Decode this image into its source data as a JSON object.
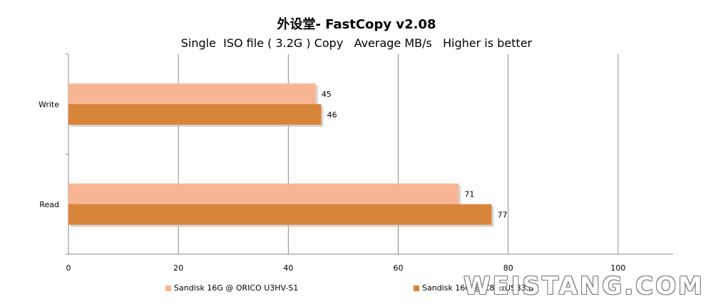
{
  "title": "外设堂- FastCopy v2.08",
  "subtitle": "Single  ISO file ( 3.2G ) Copy   Average MB/s   Higher is better",
  "watermark": "WEISTANG.COM",
  "chart_data": {
    "type": "bar",
    "orientation": "horizontal",
    "categories": [
      "Write",
      "Read"
    ],
    "series": [
      {
        "name": "Sandisk 16G @ ORICO U3HV-S1",
        "values": [
          45,
          71
        ],
        "color": "#f8b593"
      },
      {
        "name": "Sandisk 16G @ Z87 (USB3.0)",
        "values": [
          46,
          77
        ],
        "color": "#d9843b"
      }
    ],
    "xlim": [
      0,
      110
    ],
    "xticks": [
      0,
      20,
      40,
      60,
      80,
      100
    ],
    "grid": true,
    "legend": "bottom"
  }
}
